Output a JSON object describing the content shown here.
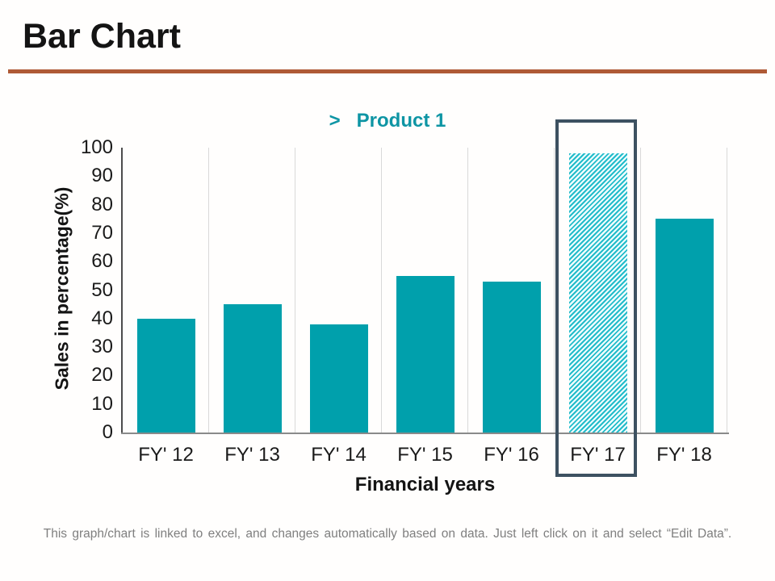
{
  "page": {
    "title": "Bar Chart",
    "caption": "This graph/chart is linked to excel, and changes automatically based on data. Just left click on it and select “Edit Data”."
  },
  "legend": {
    "marker": ">",
    "label": "Product 1"
  },
  "chart_data": {
    "type": "bar",
    "title": "",
    "categories": [
      "FY' 12",
      "FY' 13",
      "FY' 14",
      "FY' 15",
      "FY' 16",
      "FY' 17",
      "FY' 18"
    ],
    "values": [
      40,
      45,
      38,
      55,
      53,
      98,
      75
    ],
    "series_name": "Product 1",
    "xlabel": "Financial years",
    "ylabel": "Sales in percentage(%)",
    "ylim": [
      0,
      100
    ],
    "yticks": [
      0,
      10,
      20,
      30,
      40,
      50,
      60,
      70,
      80,
      90,
      100
    ],
    "grid": "vertical-category-gridlines",
    "legend_position": "top-center",
    "highlighted_category": "FY' 17",
    "highlight_style": "diagonal-hatch-bar-with-outline-box"
  },
  "colors": {
    "bar": "#00A0AC",
    "hatch": "#22BCCA",
    "highlight_box": "#3D5161",
    "divider": "#AF5A36",
    "legend_text": "#0E95A4",
    "caption_text": "#7F7F7F"
  }
}
